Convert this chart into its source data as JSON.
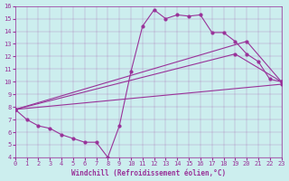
{
  "background_color": "#cceeee",
  "line_color": "#993399",
  "xlim": [
    0,
    23
  ],
  "ylim": [
    4,
    16
  ],
  "xticks": [
    0,
    1,
    2,
    3,
    4,
    5,
    6,
    7,
    8,
    9,
    10,
    11,
    12,
    13,
    14,
    15,
    16,
    17,
    18,
    19,
    20,
    21,
    22,
    23
  ],
  "yticks": [
    4,
    5,
    6,
    7,
    8,
    9,
    10,
    11,
    12,
    13,
    14,
    15,
    16
  ],
  "xlabel": "Windchill (Refroidissement éolien,°C)",
  "series": [
    {
      "x": [
        0,
        1,
        2,
        3,
        4,
        5,
        6,
        7,
        8,
        9,
        10,
        11,
        12,
        13,
        14,
        15,
        16,
        17,
        18,
        19,
        20,
        21,
        22,
        23
      ],
      "y": [
        7.8,
        7.0,
        6.5,
        6.3,
        5.8,
        5.5,
        5.2,
        5.2,
        4.0,
        6.5,
        10.8,
        14.4,
        15.7,
        15.0,
        15.3,
        15.2,
        15.3,
        13.9,
        13.9,
        13.2,
        12.2,
        11.6,
        10.2,
        10.0
      ]
    },
    {
      "x": [
        0,
        23
      ],
      "y": [
        7.8,
        9.8
      ]
    },
    {
      "x": [
        0,
        19,
        23
      ],
      "y": [
        7.8,
        12.2,
        10.0
      ]
    },
    {
      "x": [
        0,
        20,
        23
      ],
      "y": [
        7.8,
        13.2,
        10.0
      ]
    }
  ]
}
